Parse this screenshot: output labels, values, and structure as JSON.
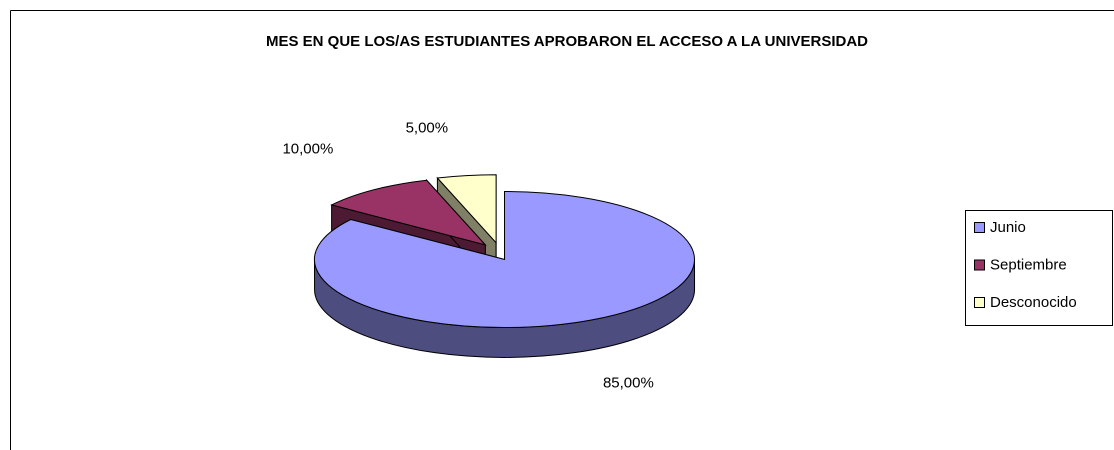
{
  "chart_data": {
    "type": "pie",
    "title": "MES EN QUE LOS/AS ESTUDIANTES APROBARON EL ACCESO A LA UNIVERSIDAD",
    "categories": [
      "Junio",
      "Septiembre",
      "Desconocido"
    ],
    "values": [
      85,
      10,
      5
    ],
    "value_labels": [
      "85,00%",
      "10,00%",
      "5,00%"
    ],
    "colors": [
      "#9999ff",
      "#993366",
      "#ffffcc"
    ],
    "legend": "right"
  }
}
